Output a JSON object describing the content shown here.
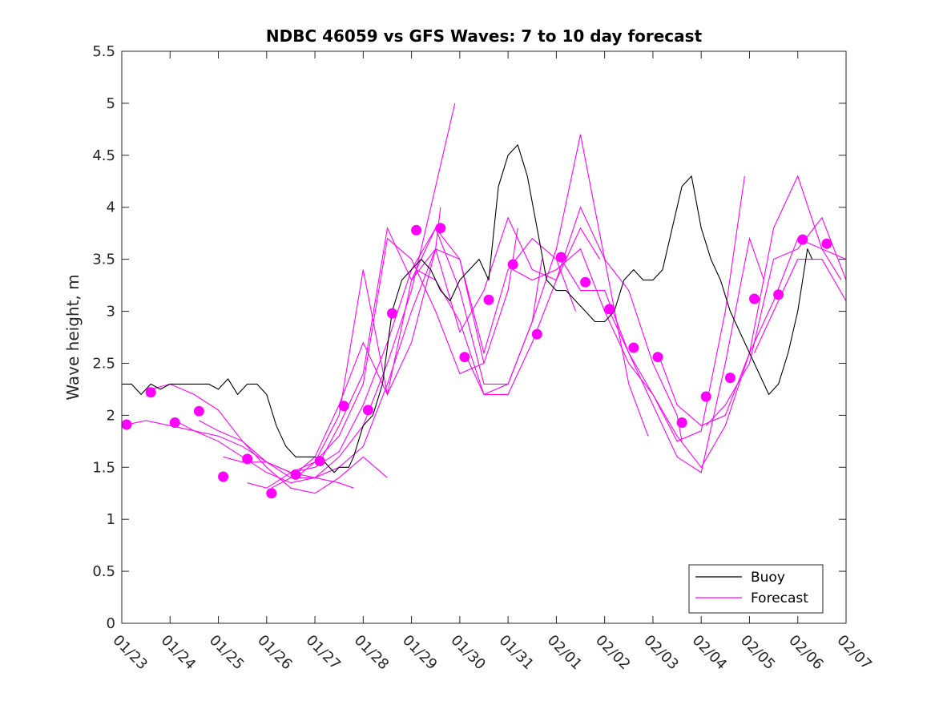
{
  "chart_data": {
    "type": "line",
    "title": "NDBC 46059 vs GFS Waves: 7 to 10 day forecast",
    "xlabel": "",
    "ylabel": "Wave height, m",
    "xlim": [
      0,
      15
    ],
    "ylim": [
      0,
      5.5
    ],
    "x_unit": "days since 01/23",
    "xtick_labels": [
      "01/23",
      "01/24",
      "01/25",
      "01/26",
      "01/27",
      "01/28",
      "01/29",
      "01/30",
      "01/31",
      "02/01",
      "02/02",
      "02/03",
      "02/04",
      "02/05",
      "02/06",
      "02/07"
    ],
    "yticks": [
      0,
      0.5,
      1,
      1.5,
      2,
      2.5,
      3,
      3.5,
      4,
      4.5,
      5,
      5.5
    ],
    "ytick_labels": [
      "0",
      "0.5",
      "1",
      "1.5",
      "2",
      "2.5",
      "3",
      "3.5",
      "4",
      "4.5",
      "5",
      "5.5"
    ],
    "legend": {
      "position": "bottom-right",
      "entries": [
        "Buoy",
        "Forecast"
      ]
    },
    "colors": {
      "buoy": "#000000",
      "forecast": "#ff00ff",
      "axis": "#262626"
    },
    "series": [
      {
        "name": "Buoy",
        "x": [
          0.0,
          0.2,
          0.4,
          0.6,
          0.8,
          1.0,
          1.2,
          1.4,
          1.6,
          1.8,
          2.0,
          2.2,
          2.4,
          2.6,
          2.8,
          3.0,
          3.2,
          3.4,
          3.6,
          3.8,
          4.0,
          4.2,
          4.3,
          4.4,
          4.5,
          4.6,
          4.7,
          4.8,
          5.0,
          5.2,
          5.4,
          5.6,
          5.8,
          6.0,
          6.2,
          6.4,
          6.6,
          6.8,
          7.0,
          7.2,
          7.4,
          7.6,
          7.8,
          8.0,
          8.2,
          8.4,
          8.6,
          8.8,
          9.0,
          9.2,
          9.4,
          9.6,
          9.8,
          10.0,
          10.2,
          10.4,
          10.6,
          10.8,
          11.0,
          11.2,
          11.4,
          11.6,
          11.8,
          12.0,
          12.2,
          12.4,
          12.6,
          12.8,
          13.0,
          13.2,
          13.4,
          13.6,
          13.8,
          14.0,
          14.1,
          14.2,
          14.3
        ],
        "y": [
          2.3,
          2.3,
          2.2,
          2.3,
          2.25,
          2.3,
          2.3,
          2.3,
          2.3,
          2.3,
          2.25,
          2.35,
          2.2,
          2.3,
          2.3,
          2.2,
          1.9,
          1.7,
          1.6,
          1.6,
          1.6,
          1.55,
          1.5,
          1.45,
          1.5,
          1.5,
          1.5,
          1.6,
          1.9,
          2.0,
          2.3,
          3.0,
          3.3,
          3.4,
          3.5,
          3.4,
          3.2,
          3.1,
          3.3,
          3.4,
          3.5,
          3.3,
          4.2,
          4.5,
          4.6,
          4.3,
          3.8,
          3.3,
          3.2,
          3.2,
          3.1,
          3.0,
          2.9,
          2.9,
          3.0,
          3.3,
          3.4,
          3.3,
          3.3,
          3.4,
          3.8,
          4.2,
          4.3,
          3.8,
          3.5,
          3.3,
          3.0,
          2.8,
          2.6,
          2.4,
          2.2,
          2.3,
          2.6,
          3.0,
          3.3,
          3.6,
          3.5
        ]
      },
      {
        "name": "Forecast",
        "x": [
          0.1,
          0.6,
          1.1,
          1.6,
          2.1,
          2.6,
          3.1,
          3.6,
          4.1,
          4.6,
          5.1,
          5.6,
          6.1,
          6.6,
          7.1,
          7.6,
          8.1,
          8.6,
          9.1,
          9.6,
          10.1,
          10.6,
          11.1,
          11.6,
          12.1,
          12.6,
          13.1,
          13.6,
          14.1,
          14.6
        ],
        "y": [
          1.91,
          2.22,
          1.93,
          2.04,
          1.41,
          1.58,
          1.25,
          1.43,
          1.56,
          2.09,
          2.05,
          2.98,
          3.78,
          3.8,
          2.56,
          3.11,
          3.45,
          2.78,
          3.52,
          3.28,
          3.02,
          2.65,
          2.56,
          1.93,
          2.18,
          2.36,
          3.12,
          3.16,
          3.69,
          3.65
        ]
      }
    ],
    "forecast_run_lines": [
      {
        "x": [
          0.0,
          0.5,
          1.0,
          1.5,
          2.0,
          2.5,
          3.0,
          3.5,
          4.0,
          4.5,
          4.8
        ],
        "y": [
          1.9,
          1.95,
          1.9,
          1.85,
          1.8,
          1.7,
          1.55,
          1.45,
          1.4,
          1.35,
          1.3
        ]
      },
      {
        "x": [
          0.6,
          1.0,
          1.5,
          2.0,
          2.5,
          3.0,
          3.5,
          4.0,
          4.5,
          5.0,
          5.5
        ],
        "y": [
          2.25,
          2.3,
          2.2,
          2.05,
          1.75,
          1.5,
          1.3,
          1.25,
          1.4,
          1.6,
          1.4
        ]
      },
      {
        "x": [
          1.1,
          1.5,
          2.0,
          2.5,
          3.0,
          3.5,
          4.0,
          4.5,
          5.0,
          5.5,
          6.0,
          6.5,
          6.6
        ],
        "y": [
          1.95,
          1.85,
          1.75,
          1.6,
          1.45,
          1.35,
          1.4,
          1.5,
          1.7,
          2.3,
          3.0,
          3.6,
          4.0
        ]
      },
      {
        "x": [
          1.6,
          2.0,
          2.5,
          3.0,
          3.5,
          4.0,
          4.5,
          5.0,
          5.5,
          6.0,
          6.5,
          6.9
        ],
        "y": [
          1.95,
          1.85,
          1.75,
          1.55,
          1.4,
          1.4,
          1.6,
          1.9,
          2.5,
          3.2,
          4.2,
          5.0
        ]
      },
      {
        "x": [
          2.1,
          2.5,
          3.0,
          3.5,
          4.0,
          4.5,
          5.0,
          5.5,
          6.0,
          6.5,
          7.0,
          7.5
        ],
        "y": [
          1.6,
          1.55,
          1.55,
          1.45,
          1.5,
          1.65,
          2.1,
          2.7,
          3.4,
          3.8,
          3.5,
          2.5
        ]
      },
      {
        "x": [
          2.6,
          3.0,
          3.5,
          4.0,
          4.5,
          5.0,
          5.5,
          6.0,
          6.5,
          7.0,
          7.5,
          8.0,
          8.2
        ],
        "y": [
          1.35,
          1.3,
          1.45,
          1.55,
          1.8,
          2.3,
          3.7,
          3.5,
          3.0,
          2.4,
          2.5,
          3.2,
          3.8
        ]
      },
      {
        "x": [
          3.1,
          3.5,
          4.0,
          4.5,
          5.0,
          5.5,
          6.0,
          6.5,
          7.0,
          7.5,
          8.0,
          8.5,
          8.7
        ],
        "y": [
          1.3,
          1.4,
          1.6,
          2.1,
          2.7,
          2.2,
          3.3,
          3.8,
          3.2,
          2.3,
          2.3,
          2.9,
          3.5
        ]
      },
      {
        "x": [
          3.6,
          4.0,
          4.5,
          5.0,
          5.5,
          6.0,
          6.5,
          7.0,
          7.5,
          8.0,
          8.5,
          9.0,
          9.4
        ],
        "y": [
          1.4,
          1.55,
          2.0,
          3.4,
          2.2,
          2.7,
          3.6,
          3.5,
          2.6,
          3.4,
          3.7,
          3.5,
          3.0
        ]
      },
      {
        "x": [
          4.1,
          4.5,
          5.0,
          5.5,
          6.0,
          6.5,
          7.0,
          7.5,
          8.0,
          8.5,
          9.0,
          9.5,
          9.9
        ],
        "y": [
          1.55,
          1.9,
          2.4,
          3.8,
          3.3,
          3.6,
          2.8,
          3.2,
          3.9,
          3.4,
          3.3,
          3.8,
          3.5
        ]
      },
      {
        "x": [
          6.1,
          6.5,
          7.0,
          7.5,
          8.0,
          8.5,
          9.0,
          9.5,
          10.0,
          10.5,
          10.9
        ],
        "y": [
          3.4,
          3.3,
          2.9,
          2.2,
          2.3,
          2.9,
          3.6,
          4.7,
          3.5,
          2.3,
          1.8
        ]
      },
      {
        "x": [
          7.1,
          7.5,
          8.0,
          8.5,
          9.0,
          9.5,
          10.0,
          10.5,
          11.0,
          11.5,
          11.6
        ],
        "y": [
          2.6,
          2.2,
          2.2,
          2.7,
          3.3,
          4.0,
          3.5,
          3.2,
          2.5,
          2.0,
          1.75
        ]
      },
      {
        "x": [
          8.1,
          8.5,
          9.0,
          9.5,
          10.0,
          10.5,
          11.0,
          11.5,
          12.0,
          12.5,
          12.9
        ],
        "y": [
          3.4,
          3.3,
          3.4,
          3.6,
          3.0,
          2.5,
          2.2,
          1.75,
          1.85,
          3.0,
          4.3
        ]
      },
      {
        "x": [
          9.1,
          9.5,
          10.0,
          10.5,
          11.0,
          11.5,
          12.0,
          12.5,
          13.0,
          13.3
        ],
        "y": [
          3.5,
          3.2,
          3.2,
          2.6,
          2.1,
          1.6,
          1.45,
          2.5,
          3.7,
          3.3
        ]
      },
      {
        "x": [
          10.1,
          10.5,
          11.0,
          11.5,
          12.0,
          12.5,
          13.0,
          13.5,
          14.0,
          14.5,
          14.9
        ],
        "y": [
          3.0,
          2.6,
          2.2,
          1.8,
          1.5,
          1.9,
          2.6,
          3.8,
          4.3,
          3.6,
          3.3
        ]
      },
      {
        "x": [
          11.1,
          11.5,
          12.0,
          12.5,
          13.0,
          13.5,
          14.0,
          14.5,
          15.0
        ],
        "y": [
          2.6,
          2.1,
          1.9,
          2.0,
          2.6,
          3.1,
          3.7,
          3.6,
          3.5
        ]
      },
      {
        "x": [
          12.1,
          12.5,
          13.0,
          13.5,
          14.0,
          14.5,
          15.0
        ],
        "y": [
          1.9,
          2.1,
          2.5,
          3.5,
          3.6,
          3.9,
          3.3
        ]
      },
      {
        "x": [
          13.1,
          13.5,
          14.0,
          14.5,
          15.0
        ],
        "y": [
          2.6,
          3.0,
          3.5,
          3.5,
          3.1
        ]
      }
    ]
  }
}
